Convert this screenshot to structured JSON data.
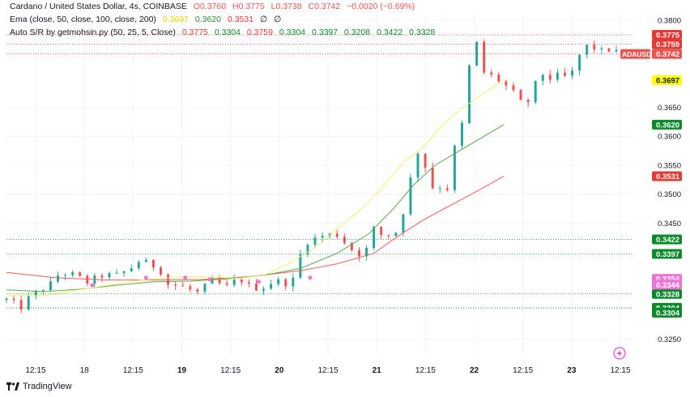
{
  "header": {
    "title_line": "Cardano / United States Dollar, 4s, COINBASE",
    "ohlc": {
      "o": "O0.3760",
      "h": "H0.3775",
      "l": "L0.3738",
      "c": "C0.3742",
      "chg": "−0.0020 (−0.69%)"
    },
    "ema_label": "Ema (close, 50, close, 100, close, 200)",
    "ema_values": [
      "0.3697",
      "0.3620",
      "0.3531",
      "∅",
      "∅"
    ],
    "sr_label": "Auto S/R by getmohsin.py (50, 25, 5, Close)",
    "sr_values": [
      "0.3775",
      "0.3304",
      "0.3759",
      "0.3304",
      "0.3397",
      "0.3208",
      "0.3422",
      "0.3328"
    ]
  },
  "brand": "TradingView",
  "colors": {
    "up": "#26a69a",
    "down": "#ef5350",
    "ema50": "#f5ed6b",
    "ema100": "#5aa84a",
    "ema200": "#f05a5a",
    "sr_red": "#e53935",
    "sr_green": "#0a8a2a",
    "magenta": "#ea74d8",
    "grid": "#f0f3fa"
  },
  "chart_data": {
    "type": "candlestick",
    "symbol": "ADAUSD",
    "ylim": [
      0.322,
      0.381
    ],
    "y_ticks": [
      "0.3800",
      "0.3650",
      "0.3600",
      "0.3550",
      "0.3500",
      "0.3450",
      "0.3250"
    ],
    "x_ticks": [
      "12:15",
      "18",
      "12:15",
      "19",
      "12:15",
      "20",
      "12:15",
      "21",
      "12:15",
      "22",
      "12:15",
      "23",
      "12:15"
    ],
    "x_ticks_bold": [
      "19",
      "20",
      "21",
      "22",
      "23"
    ],
    "ema50": [
      [
        0,
        0.3325
      ],
      [
        15,
        0.3325
      ],
      [
        28,
        0.3334
      ],
      [
        40,
        0.3342
      ],
      [
        55,
        0.3352
      ],
      [
        70,
        0.3357
      ],
      [
        80,
        0.3358
      ],
      [
        95,
        0.3355
      ],
      [
        105,
        0.336
      ],
      [
        115,
        0.338
      ],
      [
        125,
        0.3405
      ],
      [
        135,
        0.344
      ],
      [
        145,
        0.3475
      ],
      [
        152,
        0.3505
      ],
      [
        162,
        0.3555
      ],
      [
        170,
        0.358
      ],
      [
        178,
        0.362
      ],
      [
        186,
        0.3648
      ],
      [
        195,
        0.3675
      ],
      [
        203,
        0.3697
      ]
    ],
    "ema100": [
      [
        0,
        0.3335
      ],
      [
        15,
        0.3332
      ],
      [
        30,
        0.3336
      ],
      [
        45,
        0.3343
      ],
      [
        60,
        0.3349
      ],
      [
        75,
        0.335
      ],
      [
        90,
        0.3354
      ],
      [
        105,
        0.336
      ],
      [
        120,
        0.3372
      ],
      [
        135,
        0.3398
      ],
      [
        148,
        0.3432
      ],
      [
        158,
        0.3475
      ],
      [
        166,
        0.3515
      ],
      [
        175,
        0.355
      ],
      [
        185,
        0.3575
      ],
      [
        195,
        0.36
      ],
      [
        203,
        0.362
      ]
    ],
    "ema200": [
      [
        0,
        0.3365
      ],
      [
        20,
        0.3356
      ],
      [
        40,
        0.3352
      ],
      [
        60,
        0.3352
      ],
      [
        80,
        0.3353
      ],
      [
        100,
        0.3358
      ],
      [
        120,
        0.3368
      ],
      [
        135,
        0.338
      ],
      [
        150,
        0.3398
      ],
      [
        160,
        0.3428
      ],
      [
        170,
        0.3455
      ],
      [
        180,
        0.3478
      ],
      [
        192,
        0.3505
      ],
      [
        203,
        0.3531
      ]
    ],
    "sr_levels": [
      {
        "value": 0.3775,
        "label": "0.3775",
        "kind": "red"
      },
      {
        "value": 0.3759,
        "label": "0.3759",
        "kind": "red"
      },
      {
        "value": 0.3742,
        "label": "0.3742",
        "kind": "symbol"
      },
      {
        "value": 0.3422,
        "label": "0.3422",
        "kind": "green"
      },
      {
        "value": 0.3397,
        "label": "0.3397",
        "kind": "green"
      },
      {
        "value": 0.3328,
        "label": "0.3328",
        "kind": "green"
      },
      {
        "value": 0.3304,
        "label": "0.3304",
        "kind": "green"
      },
      {
        "value": 0.3304,
        "label": "0.3304",
        "kind": "green"
      }
    ],
    "price_tags": [
      {
        "value": 0.3697,
        "label": "0.3697",
        "kind": "ema50"
      },
      {
        "value": 0.362,
        "label": "0.3620",
        "kind": "ema100"
      },
      {
        "value": 0.3531,
        "label": "0.3531",
        "kind": "ema200"
      },
      {
        "value": 0.3354,
        "label": "0.3354",
        "kind": "magenta"
      },
      {
        "value": 0.3344,
        "label": "0.3344",
        "kind": "magenta"
      }
    ],
    "symbol_tag": {
      "label": "ADAUSD",
      "value": 0.3742
    },
    "magenta_dots": [
      [
        35,
        0.3343
      ],
      [
        57,
        0.3356
      ],
      [
        73,
        0.3356
      ],
      [
        83,
        0.3353
      ],
      [
        103,
        0.3349
      ],
      [
        124,
        0.3356
      ]
    ],
    "knots": [
      [
        0,
        0.3318
      ],
      [
        6,
        0.3305
      ],
      [
        10,
        0.3325
      ],
      [
        18,
        0.3345
      ],
      [
        22,
        0.3365
      ],
      [
        28,
        0.336
      ],
      [
        33,
        0.3348
      ],
      [
        40,
        0.3362
      ],
      [
        44,
        0.3358
      ],
      [
        50,
        0.337
      ],
      [
        55,
        0.3388
      ],
      [
        58,
        0.3378
      ],
      [
        62,
        0.3375
      ],
      [
        66,
        0.3345
      ],
      [
        72,
        0.334
      ],
      [
        78,
        0.333
      ],
      [
        84,
        0.335
      ],
      [
        90,
        0.334
      ],
      [
        95,
        0.3355
      ],
      [
        100,
        0.3338
      ],
      [
        105,
        0.334
      ],
      [
        110,
        0.3352
      ],
      [
        113,
        0.3345
      ],
      [
        118,
        0.3354
      ],
      [
        121,
        0.3416
      ],
      [
        124,
        0.342
      ],
      [
        130,
        0.343
      ],
      [
        135,
        0.343
      ],
      [
        140,
        0.341
      ],
      [
        143,
        0.3395
      ],
      [
        147,
        0.3405
      ],
      [
        150,
        0.344
      ],
      [
        153,
        0.343
      ],
      [
        158,
        0.343
      ],
      [
        160,
        0.344
      ],
      [
        164,
        0.35
      ],
      [
        167,
        0.358
      ],
      [
        170,
        0.356
      ],
      [
        175,
        0.35
      ],
      [
        178,
        0.352
      ],
      [
        180,
        0.351
      ],
      [
        183,
        0.358
      ],
      [
        186,
        0.362
      ],
      [
        189,
        0.372
      ],
      [
        192,
        0.376
      ],
      [
        195,
        0.371
      ],
      [
        200,
        0.37
      ],
      [
        206,
        0.368
      ],
      [
        210,
        0.3658
      ],
      [
        213,
        0.366
      ],
      [
        218,
        0.371
      ],
      [
        222,
        0.37
      ],
      [
        226,
        0.3705
      ],
      [
        230,
        0.37
      ],
      [
        234,
        0.374
      ],
      [
        238,
        0.376
      ],
      [
        242,
        0.3745
      ],
      [
        246,
        0.375
      ],
      [
        250,
        0.3742
      ]
    ]
  }
}
